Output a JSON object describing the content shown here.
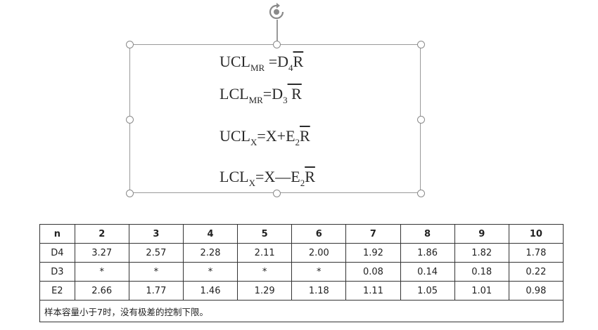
{
  "formulas": {
    "ucl_mr": {
      "base": "UCL",
      "sub": "MR",
      "eq": " =D",
      "const_sub": "4",
      "rbar": "R"
    },
    "lcl_mr": {
      "base": "LCL",
      "sub": "MR",
      "eq": "=D",
      "const_sub": "3",
      "rbar": " R"
    },
    "ucl_x": {
      "base": "UCL",
      "sub": "X",
      "eq": "=X+E",
      "const_sub": "2",
      "rbar": "R"
    },
    "lcl_x": {
      "base": "LCL",
      "sub": "X",
      "eq": "=X—E",
      "const_sub": "2",
      "rbar": "R"
    }
  },
  "table": {
    "headers": [
      "n",
      "2",
      "3",
      "4",
      "5",
      "6",
      "7",
      "8",
      "9",
      "10"
    ],
    "rows": [
      [
        "D4",
        "3.27",
        "2.57",
        "2.28",
        "2.11",
        "2.00",
        "1.92",
        "1.86",
        "1.82",
        "1.78"
      ],
      [
        "D3",
        "*",
        "*",
        "*",
        "*",
        "*",
        "0.08",
        "0.14",
        "0.18",
        "0.22"
      ],
      [
        "E2",
        "2.66",
        "1.77",
        "1.46",
        "1.29",
        "1.18",
        "1.11",
        "1.05",
        "1.01",
        "0.98"
      ]
    ],
    "note": "样本容量小于7时，没有极差的控制下限。"
  },
  "icons": {
    "rotate": "rotate-handle-icon"
  },
  "colors": {
    "frame": "#9a9a9a",
    "text": "#2a2a2a",
    "table_border": "#333333"
  }
}
